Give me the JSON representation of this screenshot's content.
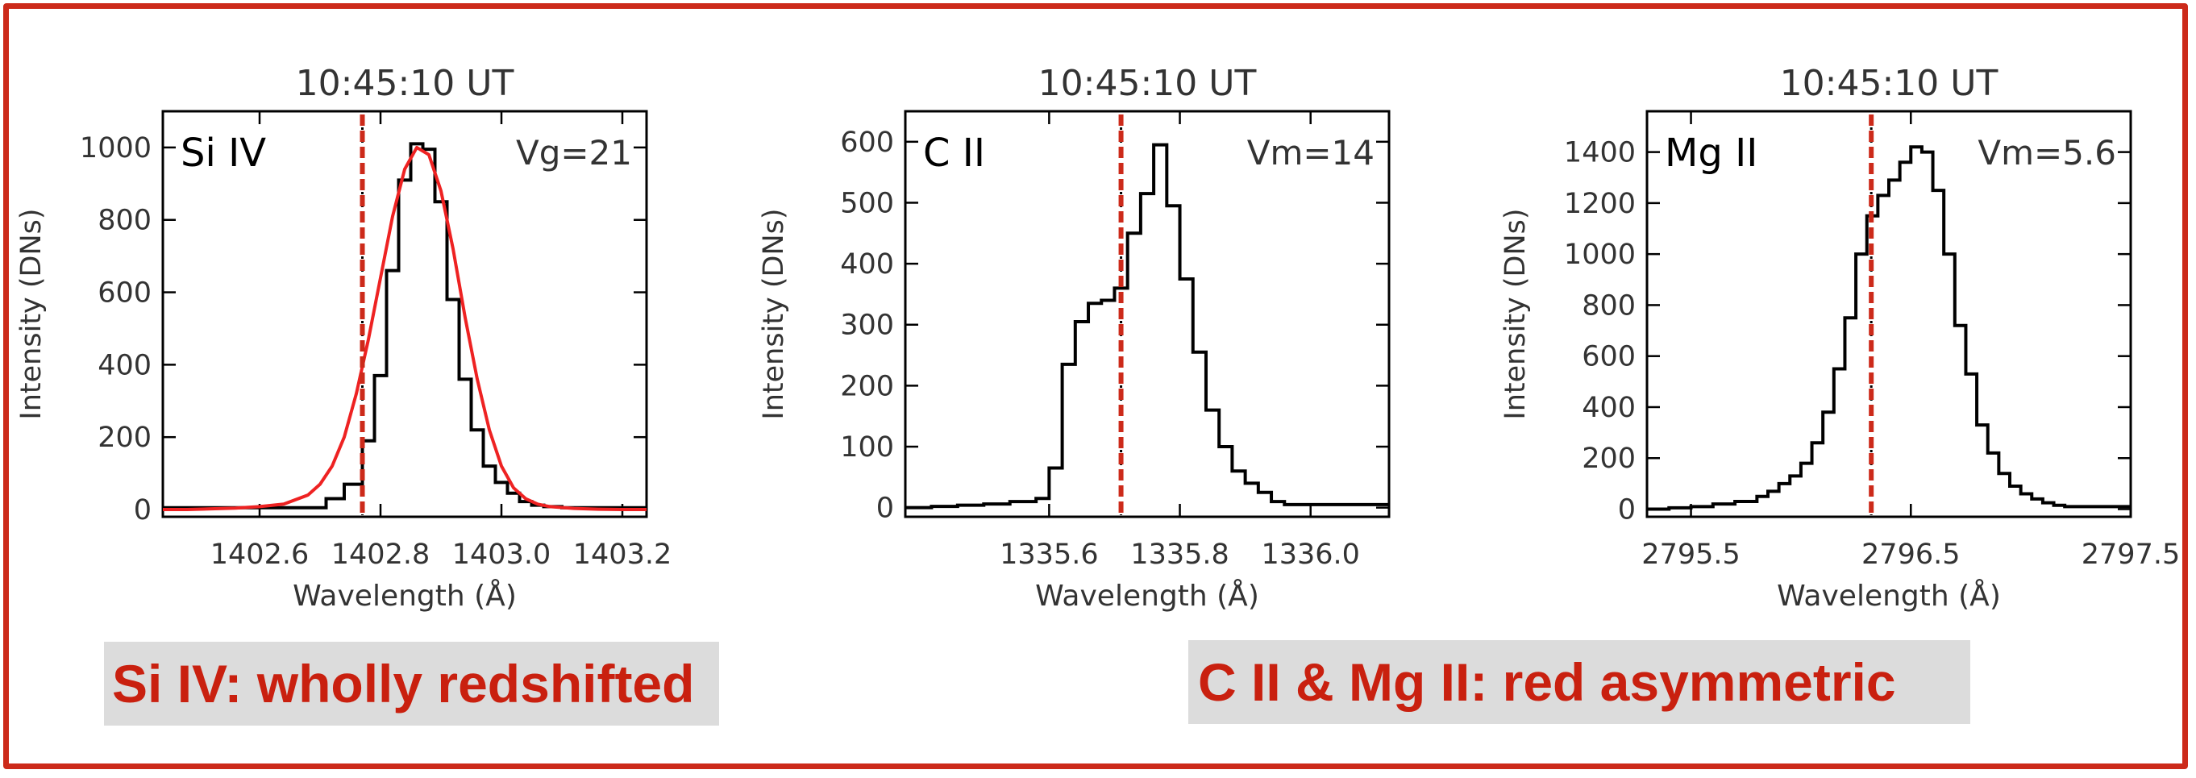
{
  "colors": {
    "frame": "#cc2a1a",
    "annotation_text": "#c9200f",
    "annotation_bg": "#dcdcdc",
    "fit": "#ee2222",
    "reference_line": "#cc2a1a",
    "histogram": "#000000"
  },
  "annotations": {
    "left": "Si IV: wholly redshifted",
    "right": "C II & Mg II: red asymmetric"
  },
  "chart_data": [
    {
      "type": "line",
      "title": "10:45:10 UT",
      "line_label": "Si IV",
      "velocity_label": "Vg=21",
      "xlabel": "Wavelength (Å)",
      "ylabel": "Intensity (DNs)",
      "xlim": [
        1402.44,
        1403.24
      ],
      "ylim": [
        -20,
        1100
      ],
      "xticks": [
        1402.6,
        1402.8,
        1403.0,
        1403.2
      ],
      "xtick_labels": [
        "1402.6",
        "1402.8",
        "1403.0",
        "1403.2"
      ],
      "yticks": [
        0,
        200,
        400,
        600,
        800,
        1000
      ],
      "ytick_labels": [
        "0",
        "200",
        "400",
        "600",
        "800",
        "1000"
      ],
      "reference_wavelength": 1402.77,
      "series": [
        {
          "style": "step",
          "x": [
            1402.44,
            1402.47,
            1402.5,
            1402.53,
            1402.56,
            1402.59,
            1402.62,
            1402.65,
            1402.68,
            1402.71,
            1402.74,
            1402.77,
            1402.79,
            1402.81,
            1402.83,
            1402.85,
            1402.87,
            1402.89,
            1402.91,
            1402.93,
            1402.95,
            1402.97,
            1402.99,
            1403.01,
            1403.03,
            1403.05,
            1403.07,
            1403.1,
            1403.13,
            1403.16,
            1403.19,
            1403.22
          ],
          "y": [
            5,
            5,
            5,
            5,
            5,
            5,
            5,
            5,
            5,
            30,
            70,
            190,
            370,
            660,
            910,
            1010,
            995,
            850,
            580,
            360,
            220,
            120,
            75,
            45,
            22,
            12,
            8,
            5,
            5,
            5,
            5,
            5
          ]
        },
        {
          "style": "smooth",
          "x": [
            1402.44,
            1402.48,
            1402.52,
            1402.56,
            1402.6,
            1402.64,
            1402.68,
            1402.7,
            1402.72,
            1402.74,
            1402.76,
            1402.78,
            1402.8,
            1402.82,
            1402.84,
            1402.86,
            1402.88,
            1402.9,
            1402.92,
            1402.94,
            1402.96,
            1402.98,
            1403.0,
            1403.02,
            1403.04,
            1403.06,
            1403.08,
            1403.12,
            1403.16,
            1403.2,
            1403.24
          ],
          "y": [
            0,
            0,
            2,
            4,
            8,
            15,
            40,
            70,
            120,
            200,
            320,
            470,
            640,
            810,
            940,
            1000,
            980,
            880,
            720,
            530,
            360,
            220,
            120,
            60,
            30,
            15,
            8,
            3,
            1,
            0,
            0
          ]
        }
      ]
    },
    {
      "type": "line",
      "title": "10:45:10 UT",
      "line_label": "C II",
      "velocity_label": "Vm=14",
      "xlabel": "Wavelength (Å)",
      "ylabel": "Intensity (DNs)",
      "xlim": [
        1335.38,
        1336.12
      ],
      "ylim": [
        -15,
        650
      ],
      "xticks": [
        1335.6,
        1335.8,
        1336.0
      ],
      "xtick_labels": [
        "1335.6",
        "1335.8",
        "1336.0"
      ],
      "yticks": [
        0,
        100,
        200,
        300,
        400,
        500,
        600
      ],
      "ytick_labels": [
        "0",
        "100",
        "200",
        "300",
        "400",
        "500",
        "600"
      ],
      "reference_wavelength": 1335.71,
      "series": [
        {
          "style": "step",
          "x": [
            1335.38,
            1335.42,
            1335.46,
            1335.5,
            1335.54,
            1335.58,
            1335.6,
            1335.62,
            1335.64,
            1335.66,
            1335.68,
            1335.7,
            1335.72,
            1335.74,
            1335.76,
            1335.78,
            1335.8,
            1335.82,
            1335.84,
            1335.86,
            1335.88,
            1335.9,
            1335.92,
            1335.94,
            1335.96,
            1335.98,
            1336.0,
            1336.04,
            1336.08,
            1336.12
          ],
          "y": [
            0,
            2,
            4,
            6,
            10,
            15,
            65,
            235,
            305,
            335,
            340,
            360,
            450,
            515,
            595,
            495,
            375,
            255,
            160,
            100,
            60,
            40,
            25,
            10,
            5,
            5,
            5,
            5,
            5,
            5
          ]
        }
      ]
    },
    {
      "type": "line",
      "title": "10:45:10 UT",
      "line_label": "Mg II",
      "velocity_label": "Vm=5.6",
      "xlabel": "Wavelength (Å)",
      "ylabel": "Intensity (DNs)",
      "xlim": [
        2795.3,
        2797.5
      ],
      "ylim": [
        -30,
        1560
      ],
      "xticks": [
        2795.5,
        2796.5,
        2797.5
      ],
      "xtick_labels": [
        "2795.5",
        "2796.5",
        "2797.5"
      ],
      "yticks": [
        0,
        200,
        400,
        600,
        800,
        1000,
        1200,
        1400
      ],
      "ytick_labels": [
        "0",
        "200",
        "400",
        "600",
        "800",
        "1000",
        "1200",
        "1400"
      ],
      "reference_wavelength": 2796.32,
      "series": [
        {
          "style": "step",
          "x": [
            2795.3,
            2795.4,
            2795.5,
            2795.6,
            2795.7,
            2795.8,
            2795.85,
            2795.9,
            2795.95,
            2796.0,
            2796.05,
            2796.1,
            2796.15,
            2796.2,
            2796.25,
            2796.3,
            2796.35,
            2796.4,
            2796.45,
            2796.5,
            2796.55,
            2796.6,
            2796.65,
            2796.7,
            2796.75,
            2796.8,
            2796.85,
            2796.9,
            2796.95,
            2797.0,
            2797.05,
            2797.1,
            2797.15,
            2797.2,
            2797.3,
            2797.4,
            2797.5
          ],
          "y": [
            0,
            5,
            10,
            20,
            30,
            50,
            70,
            100,
            130,
            180,
            260,
            380,
            550,
            750,
            1000,
            1150,
            1230,
            1290,
            1360,
            1420,
            1400,
            1250,
            1000,
            720,
            530,
            330,
            220,
            140,
            90,
            60,
            40,
            25,
            15,
            10,
            10,
            10,
            10
          ]
        }
      ]
    }
  ]
}
